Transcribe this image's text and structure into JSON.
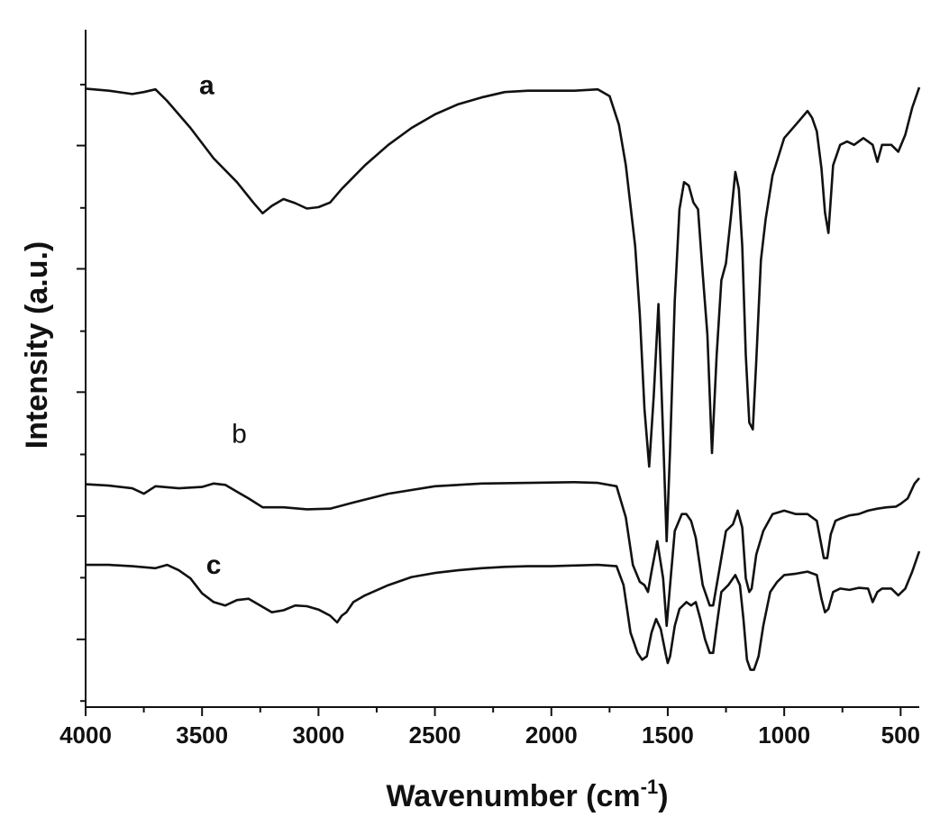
{
  "chart_data": {
    "type": "line",
    "xlabel": "Wavenumber (cm",
    "xlabel_sup": "-1",
    "xlabel_close": ")",
    "ylabel": "Intensity (a.u.)",
    "xlim": [
      4000,
      420
    ],
    "ylim": [
      0,
      100
    ],
    "x_reversed": true,
    "x_ticks": [
      {
        "value": 4000,
        "label": "4000"
      },
      {
        "value": 3500,
        "label": "3500"
      },
      {
        "value": 3000,
        "label": "3000"
      },
      {
        "value": 2500,
        "label": "2500"
      },
      {
        "value": 2000,
        "label": "2000"
      },
      {
        "value": 1500,
        "label": "1500"
      },
      {
        "value": 1000,
        "label": "1000"
      },
      {
        "value": 500,
        "label": "500"
      }
    ],
    "y_major_ticks": [
      10,
      28.2,
      46.5,
      64.7,
      82.9
    ],
    "y_tick_labels_shown": false,
    "grid": false,
    "series": [
      {
        "name": "a",
        "label_bold": true,
        "label_position": {
          "x": 3480,
          "y": 90.5
        },
        "color": "#111111",
        "x": [
          4000,
          3900,
          3800,
          3750,
          3700,
          3650,
          3550,
          3450,
          3350,
          3280,
          3240,
          3200,
          3150,
          3100,
          3050,
          3000,
          2950,
          2900,
          2800,
          2700,
          2600,
          2500,
          2400,
          2300,
          2200,
          2100,
          2000,
          1900,
          1800,
          1750,
          1710,
          1680,
          1660,
          1640,
          1620,
          1600,
          1580,
          1560,
          1540,
          1520,
          1505,
          1490,
          1470,
          1450,
          1430,
          1410,
          1390,
          1370,
          1350,
          1330,
          1310,
          1290,
          1270,
          1250,
          1230,
          1210,
          1195,
          1180,
          1165,
          1150,
          1135,
          1120,
          1100,
          1080,
          1050,
          1000,
          950,
          900,
          880,
          860,
          840,
          825,
          810,
          790,
          760,
          730,
          700,
          660,
          620,
          600,
          580,
          540,
          510,
          480,
          450,
          420
        ],
        "y": [
          91.3,
          91.0,
          90.5,
          90.8,
          91.2,
          89.5,
          85.5,
          81.0,
          77.5,
          74.5,
          72.9,
          74.0,
          75.0,
          74.4,
          73.6,
          73.8,
          74.5,
          76.5,
          80.0,
          83.0,
          85.5,
          87.5,
          89.0,
          90.0,
          90.8,
          91.0,
          91.0,
          91.0,
          91.2,
          90.2,
          86.0,
          80.0,
          74.0,
          68.0,
          58.0,
          44.0,
          35.5,
          46.0,
          59.5,
          40.0,
          24.5,
          38.0,
          60.0,
          73.5,
          77.5,
          77.0,
          74.5,
          73.5,
          64.0,
          55.0,
          37.5,
          52.0,
          63.0,
          65.5,
          72.0,
          79.0,
          76.5,
          68.0,
          52.0,
          42.0,
          41.0,
          51.0,
          66.0,
          72.0,
          78.5,
          84.0,
          86.0,
          88.0,
          87.0,
          85.0,
          79.5,
          73.0,
          70.0,
          80.0,
          83.0,
          83.5,
          83.0,
          84.0,
          83.0,
          80.5,
          83.0,
          83.0,
          82.0,
          84.5,
          88.5,
          91.5
        ]
      },
      {
        "name": "b",
        "label_bold": false,
        "label_position": {
          "x": 3340,
          "y": 39.0
        },
        "color": "#111111",
        "x": [
          4000,
          3900,
          3800,
          3750,
          3700,
          3600,
          3500,
          3450,
          3400,
          3350,
          3300,
          3240,
          3150,
          3050,
          2950,
          2850,
          2700,
          2500,
          2300,
          2100,
          1900,
          1800,
          1720,
          1680,
          1650,
          1620,
          1600,
          1585,
          1570,
          1545,
          1520,
          1505,
          1490,
          1470,
          1440,
          1420,
          1400,
          1380,
          1350,
          1320,
          1305,
          1280,
          1250,
          1220,
          1200,
          1180,
          1165,
          1150,
          1140,
          1120,
          1090,
          1050,
          1000,
          950,
          900,
          860,
          830,
          815,
          800,
          780,
          760,
          720,
          680,
          640,
          600,
          560,
          520,
          500,
          470,
          440,
          420
        ],
        "y": [
          32.9,
          32.7,
          32.3,
          31.5,
          32.6,
          32.3,
          32.5,
          33.0,
          32.8,
          31.8,
          30.8,
          29.5,
          29.5,
          29.2,
          29.3,
          30.2,
          31.5,
          32.6,
          33.0,
          33.1,
          33.2,
          33.1,
          32.6,
          28.0,
          21.0,
          18.5,
          18.0,
          17.0,
          20.0,
          24.5,
          19.0,
          12.0,
          18.0,
          26.0,
          28.5,
          28.5,
          27.5,
          25.0,
          18.0,
          15.0,
          15.0,
          20.0,
          26.0,
          27.0,
          29.0,
          26.5,
          19.0,
          17.0,
          17.5,
          22.5,
          26.0,
          28.5,
          29.0,
          28.5,
          28.5,
          27.5,
          22.0,
          22.0,
          25.5,
          27.5,
          27.8,
          28.3,
          28.5,
          29.0,
          29.3,
          29.5,
          29.6,
          30.0,
          30.8,
          33.0,
          33.8
        ]
      },
      {
        "name": "c",
        "label_bold": true,
        "label_position": {
          "x": 3450,
          "y": 19.7
        },
        "color": "#111111",
        "x": [
          4000,
          3900,
          3800,
          3700,
          3650,
          3600,
          3550,
          3500,
          3450,
          3400,
          3350,
          3300,
          3250,
          3200,
          3150,
          3100,
          3050,
          3000,
          2950,
          2920,
          2900,
          2880,
          2850,
          2800,
          2700,
          2600,
          2500,
          2400,
          2300,
          2200,
          2100,
          2000,
          1900,
          1800,
          1720,
          1690,
          1660,
          1630,
          1610,
          1590,
          1570,
          1550,
          1530,
          1510,
          1500,
          1490,
          1470,
          1450,
          1420,
          1400,
          1380,
          1360,
          1340,
          1320,
          1305,
          1290,
          1270,
          1240,
          1210,
          1190,
          1175,
          1160,
          1145,
          1130,
          1110,
          1090,
          1060,
          1030,
          1000,
          950,
          900,
          860,
          840,
          825,
          810,
          790,
          760,
          720,
          680,
          640,
          620,
          600,
          580,
          540,
          510,
          480,
          450,
          420
        ],
        "y": [
          21.0,
          21.0,
          20.8,
          20.5,
          21.0,
          20.2,
          19.0,
          16.8,
          15.5,
          15.0,
          15.8,
          16.0,
          15.0,
          14.0,
          14.3,
          15.0,
          14.9,
          14.4,
          13.5,
          12.5,
          13.5,
          14.0,
          15.5,
          16.5,
          18.0,
          19.2,
          19.8,
          20.2,
          20.5,
          20.7,
          20.8,
          20.8,
          20.9,
          21.0,
          20.8,
          18.0,
          11.0,
          8.0,
          7.0,
          7.5,
          11.0,
          13.0,
          11.5,
          8.0,
          6.5,
          7.5,
          12.0,
          14.5,
          15.5,
          15.0,
          15.5,
          13.0,
          10.0,
          8.0,
          8.0,
          12.0,
          17.0,
          18.0,
          19.5,
          18.0,
          13.0,
          7.0,
          5.5,
          5.5,
          7.5,
          12.0,
          17.0,
          18.5,
          19.5,
          19.7,
          20.0,
          19.5,
          16.0,
          14.0,
          14.5,
          17.0,
          17.5,
          17.3,
          17.6,
          17.5,
          15.5,
          17.0,
          17.5,
          17.5,
          16.5,
          17.5,
          20.0,
          23.0
        ]
      }
    ]
  }
}
